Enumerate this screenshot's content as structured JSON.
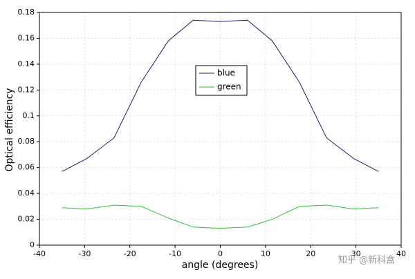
{
  "chart_data": {
    "type": "line",
    "x_label": "angle (degrees)",
    "y_label": "Optical efficiency",
    "x": [
      -35,
      -29.5,
      -23.5,
      -17.5,
      -11.5,
      -6,
      0,
      6,
      11.5,
      17.5,
      23.5,
      29.5,
      35
    ],
    "series": [
      {
        "name": "blue",
        "color": "#1a1a6e",
        "values": [
          0.057,
          0.067,
          0.083,
          0.126,
          0.158,
          0.174,
          0.173,
          0.174,
          0.158,
          0.126,
          0.083,
          0.067,
          0.057
        ]
      },
      {
        "name": "green",
        "color": "#33bb33",
        "values": [
          0.029,
          0.028,
          0.031,
          0.03,
          0.021,
          0.014,
          0.013,
          0.014,
          0.02,
          0.03,
          0.031,
          0.028,
          0.029
        ]
      }
    ],
    "xlim": [
      -40,
      40
    ],
    "xticks": [
      -40,
      -30,
      -20,
      -10,
      0,
      10,
      20,
      30,
      40
    ],
    "ylim": [
      0,
      0.18
    ],
    "yticks": [
      0,
      0.02,
      0.04,
      0.06,
      0.08,
      0.1,
      0.12,
      0.14,
      0.16,
      0.18
    ],
    "grid": true,
    "legend": "center",
    "watermark": "知乎 @新科盒"
  }
}
